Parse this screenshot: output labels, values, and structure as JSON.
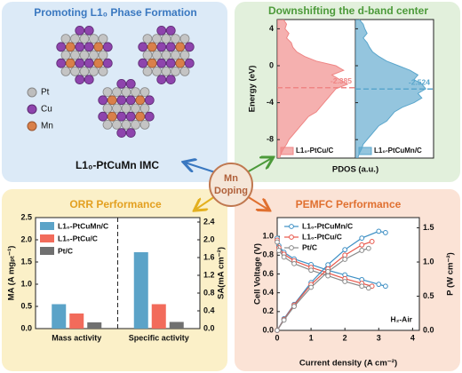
{
  "panels": {
    "top_left": {
      "title": "Promoting L1₀ Phase Formation",
      "legend": [
        "Pt",
        "Cu",
        "Mn"
      ],
      "label": "L1₀-PtCuMn IMC"
    },
    "center": {
      "label": [
        "Mn",
        "Doping"
      ]
    }
  },
  "chart_data": [
    {
      "type": "pdos",
      "title": "Downshifting the d-band center",
      "ylabel": "Energy (eV)",
      "xlabel": "PDOS (a.u.)",
      "ylim": [
        -10,
        5
      ],
      "yticks": [
        4,
        0,
        -4,
        -8
      ],
      "xlim": [
        0,
        1
      ],
      "y": [
        5,
        4.5,
        4,
        3.5,
        3,
        2.5,
        2,
        1.5,
        1,
        0.5,
        0,
        -0.5,
        -1,
        -1.5,
        -2,
        -2.5,
        -3,
        -3.5,
        -4,
        -4.5,
        -5,
        -5.5,
        -6,
        -6.5,
        -7,
        -7.5,
        -8,
        -8.5,
        -9,
        -9.5,
        -10
      ],
      "series": [
        {
          "name": "L1₀-PtCu/C",
          "color": "#ef8584",
          "d_band_center": -2.385,
          "values": [
            0.08,
            0.12,
            0.1,
            0.15,
            0.12,
            0.18,
            0.2,
            0.25,
            0.35,
            0.5,
            0.75,
            0.85,
            0.7,
            0.8,
            0.9,
            0.75,
            0.7,
            0.65,
            0.6,
            0.55,
            0.5,
            0.4,
            0.35,
            0.3,
            0.25,
            0.2,
            0.15,
            0.12,
            0.08,
            0.05,
            0.03
          ]
        },
        {
          "name": "L1₀-PtCuMn/C",
          "color": "#5aa6cc",
          "d_band_center": -2.524,
          "values": [
            0.05,
            0.1,
            0.12,
            0.15,
            0.1,
            0.15,
            0.18,
            0.22,
            0.3,
            0.4,
            0.55,
            0.7,
            0.8,
            0.75,
            0.85,
            0.9,
            0.8,
            0.85,
            0.75,
            0.6,
            0.5,
            0.45,
            0.4,
            0.3,
            0.25,
            0.2,
            0.15,
            0.1,
            0.08,
            0.05,
            0.03
          ]
        }
      ]
    },
    {
      "type": "bar",
      "title": "ORR Performance",
      "ylabel": "MA (A mgₚₜ⁻¹)",
      "y2label": "SA(mA cm⁻²)",
      "categories": [
        "Mass activity",
        "Specific activity"
      ],
      "category_axes": [
        "y",
        "y2"
      ],
      "ylim": [
        0,
        2.5
      ],
      "yticks": [
        {
          "value": 0,
          "label": "0.0"
        },
        0.5,
        {
          "value": 1,
          "label": "1.0"
        },
        1.5,
        {
          "value": 2,
          "label": "2.0"
        },
        2.5
      ],
      "y2lim": [
        0,
        2.5
      ],
      "y2ticks": [
        {
          "value": 0,
          "label": "0.0"
        },
        0.4,
        0.8,
        1.2,
        1.6,
        {
          "value": 2,
          "label": "2.0"
        },
        2.4
      ],
      "series": [
        {
          "name": "L1₀-PtCuMn/C",
          "color": "#5ba3c8",
          "values": [
            0.55,
            1.72
          ]
        },
        {
          "name": "L1₀-PtCu/C",
          "color": "#f26b5b",
          "values": [
            0.34,
            0.55
          ]
        },
        {
          "name": "Pt/C",
          "color": "#707070",
          "values": [
            0.14,
            0.15
          ]
        }
      ]
    },
    {
      "type": "line",
      "title": "PEMFC Performance",
      "xlabel": "Current density (A cm⁻²)",
      "ylabel": "Cell Voltage (V)",
      "y2label": "P (W cm⁻²)",
      "annotation": "H₂-Air",
      "xlim": [
        0,
        4.2
      ],
      "xticks": [
        0,
        1,
        2,
        3,
        4
      ],
      "ylim": [
        0,
        1.2
      ],
      "yticks": [
        {
          "value": 0,
          "label": "0.0"
        },
        0.2,
        0.4,
        0.6,
        0.8,
        {
          "value": 1,
          "label": "1.0"
        }
      ],
      "y2lim": [
        0,
        1.65
      ],
      "y2ticks": [
        {
          "value": 0,
          "label": "0.0"
        },
        0.5,
        {
          "value": 1,
          "label": "1.0"
        },
        1.5
      ],
      "series": [
        {
          "name": "L1₀-PtCuMn/C",
          "color": "#3d8fc4",
          "axis": "y",
          "x": [
            0,
            0.05,
            0.2,
            0.5,
            1,
            1.5,
            2,
            2.5,
            3,
            3.2
          ],
          "values": [
            0.98,
            0.9,
            0.83,
            0.76,
            0.7,
            0.64,
            0.59,
            0.54,
            0.49,
            0.47
          ]
        },
        {
          "name": "L1₀-PtCu/C",
          "color": "#e8564a",
          "axis": "y",
          "x": [
            0,
            0.05,
            0.2,
            0.5,
            1,
            1.5,
            2,
            2.5,
            2.8
          ],
          "values": [
            0.96,
            0.88,
            0.81,
            0.74,
            0.67,
            0.61,
            0.55,
            0.5,
            0.47
          ]
        },
        {
          "name": "Pt/C",
          "color": "#8a8a8a",
          "axis": "y",
          "x": [
            0,
            0.05,
            0.2,
            0.5,
            1,
            1.5,
            2,
            2.5,
            2.7
          ],
          "values": [
            0.94,
            0.85,
            0.78,
            0.71,
            0.64,
            0.58,
            0.52,
            0.47,
            0.45
          ]
        },
        {
          "color": "#3d8fc4",
          "axis": "y2",
          "x": [
            0,
            0.2,
            0.5,
            1,
            1.5,
            2,
            2.5,
            3,
            3.2
          ],
          "values": [
            0,
            0.17,
            0.38,
            0.7,
            0.96,
            1.18,
            1.35,
            1.45,
            1.43
          ]
        },
        {
          "color": "#e8564a",
          "axis": "y2",
          "x": [
            0,
            0.2,
            0.5,
            1,
            1.5,
            2,
            2.5,
            2.8
          ],
          "values": [
            0,
            0.16,
            0.37,
            0.67,
            0.9,
            1.1,
            1.25,
            1.3
          ]
        },
        {
          "color": "#8a8a8a",
          "axis": "y2",
          "x": [
            0,
            0.2,
            0.5,
            1,
            1.5,
            2,
            2.5,
            2.7
          ],
          "values": [
            0,
            0.15,
            0.35,
            0.63,
            0.86,
            1.04,
            1.17,
            1.2
          ]
        }
      ]
    }
  ]
}
